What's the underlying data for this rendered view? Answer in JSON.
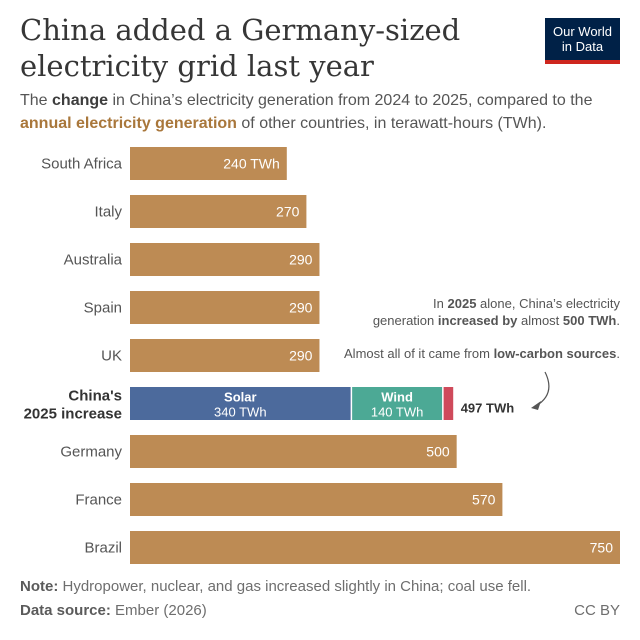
{
  "header": {
    "title": "China added a Germany-sized electricity grid last year",
    "subtitle": {
      "part1": "The ",
      "change": "change",
      "part2": " in China’s electricity generation from 2024 to 2025, compared to the ",
      "annual": "annual electricity generation",
      "part3": " of other countries, in terawatt-hours (TWh)."
    },
    "logo_line1": "Our World",
    "logo_line2": "in Data"
  },
  "colors": {
    "country_bar": "#bd8b54",
    "solar": "#4c6a9c",
    "wind": "#4ca995",
    "other": "#cf4a5b",
    "logo_bg": "#002147",
    "logo_accent": "#ce261e"
  },
  "chart_data": {
    "type": "bar",
    "orientation": "horizontal",
    "unit": "TWh",
    "categories": [
      "South Africa",
      "Italy",
      "Australia",
      "Spain",
      "UK",
      "China's 2025 increase",
      "Germany",
      "France",
      "Brazil"
    ],
    "values": [
      240,
      270,
      290,
      290,
      290,
      497,
      500,
      570,
      750
    ],
    "value_labels": [
      "240 TWh",
      "270",
      "290",
      "290",
      "290",
      "497 TWh",
      "500",
      "570",
      "750"
    ],
    "highlight": {
      "category": "China's 2025 increase",
      "label_line1": "China's",
      "label_line2": "2025 increase",
      "total_label": "497 TWh",
      "segments": [
        {
          "name": "Solar",
          "value": 340,
          "label": "340 TWh"
        },
        {
          "name": "Wind",
          "value": 140,
          "label": "140 TWh"
        },
        {
          "name": "",
          "value": 17,
          "label": ""
        }
      ]
    },
    "annotations": {
      "line1": {
        "a": "In ",
        "b": "2025",
        "c": " alone, China’s electricity"
      },
      "line2": {
        "a": "generation ",
        "b": "increased by",
        "c": " almost ",
        "d": "500 TWh",
        "e": "."
      },
      "line3": {
        "a": "Almost all of it came from ",
        "b": "low-carbon sources",
        "c": "."
      }
    }
  },
  "footer": {
    "note_label": "Note:",
    "note_text": " Hydropower, nuclear, and gas increased slightly in China; coal use fell.",
    "source_label": "Data source:",
    "source_text": " Ember (2026)",
    "license": "CC BY"
  }
}
